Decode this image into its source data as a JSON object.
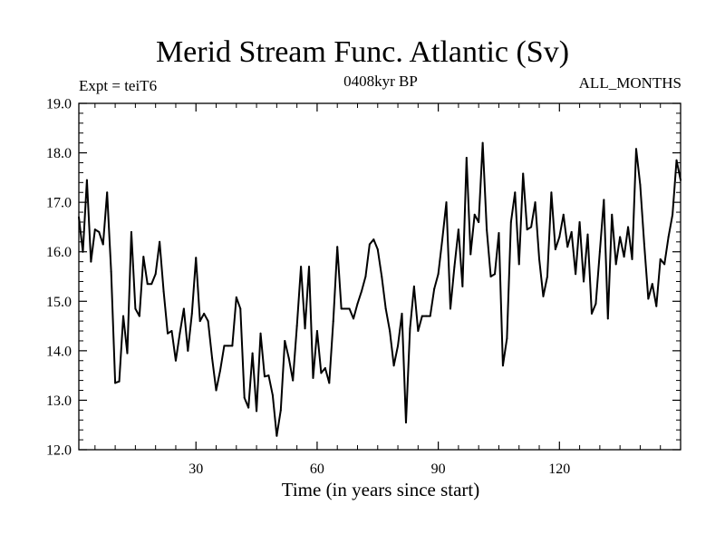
{
  "chart_data": {
    "type": "line",
    "title": "Merid Stream Func. Atlantic (Sv)",
    "subtitle": "0408kyr BP",
    "annotation_left": "Expt = teiT6",
    "annotation_right": "ALL_MONTHS",
    "xlabel": "Time (in years since start)",
    "ylabel": "",
    "xlim": [
      1,
      150
    ],
    "ylim": [
      12.0,
      19.0
    ],
    "xticks": [
      30,
      60,
      90,
      120
    ],
    "xtick_labels": [
      "30",
      "60",
      "90",
      "120"
    ],
    "yticks": [
      12,
      13,
      14,
      15,
      16,
      17,
      18,
      19
    ],
    "ytick_labels": [
      "12.0",
      "13.0",
      "14.0",
      "15.0",
      "16.0",
      "17.0",
      "18.0",
      "19.0"
    ],
    "series": [
      {
        "name": "Merid Stream Func. Atlantic",
        "color": "#000000",
        "x": [
          1,
          2,
          3,
          4,
          5,
          6,
          7,
          8,
          9,
          10,
          11,
          12,
          13,
          14,
          15,
          16,
          17,
          18,
          19,
          20,
          21,
          22,
          23,
          24,
          25,
          26,
          27,
          28,
          29,
          30,
          31,
          32,
          33,
          34,
          35,
          36,
          37,
          38,
          39,
          40,
          41,
          42,
          43,
          44,
          45,
          46,
          47,
          48,
          49,
          50,
          51,
          52,
          53,
          54,
          55,
          56,
          57,
          58,
          59,
          60,
          61,
          62,
          63,
          64,
          65,
          66,
          67,
          68,
          69,
          70,
          71,
          72,
          73,
          74,
          75,
          76,
          77,
          78,
          79,
          80,
          81,
          82,
          83,
          84,
          85,
          86,
          87,
          88,
          89,
          90,
          91,
          92,
          93,
          94,
          95,
          96,
          97,
          98,
          99,
          100,
          101,
          102,
          103,
          104,
          105,
          106,
          107,
          108,
          109,
          110,
          111,
          112,
          113,
          114,
          115,
          116,
          117,
          118,
          119,
          120,
          121,
          122,
          123,
          124,
          125,
          126,
          127,
          128,
          129,
          130,
          131,
          132,
          133,
          134,
          135,
          136,
          137,
          138,
          139,
          140,
          141,
          142,
          143,
          144,
          145,
          146,
          147,
          148,
          149,
          150
        ],
        "values": [
          16.7,
          16.0,
          17.45,
          15.8,
          16.45,
          16.4,
          16.15,
          17.2,
          15.6,
          13.35,
          13.38,
          14.7,
          13.95,
          16.4,
          14.85,
          14.7,
          15.9,
          15.35,
          15.35,
          15.55,
          16.2,
          15.2,
          14.35,
          14.4,
          13.8,
          14.35,
          14.85,
          14.0,
          14.75,
          15.88,
          14.6,
          14.75,
          14.6,
          13.85,
          13.2,
          13.6,
          14.1,
          14.1,
          14.1,
          15.08,
          14.85,
          13.05,
          12.85,
          13.95,
          12.78,
          14.35,
          13.48,
          13.5,
          13.1,
          12.28,
          12.8,
          14.2,
          13.85,
          13.4,
          14.5,
          15.7,
          14.45,
          15.7,
          13.45,
          14.4,
          13.55,
          13.65,
          13.35,
          14.6,
          16.1,
          14.85,
          14.85,
          14.85,
          14.65,
          14.95,
          15.2,
          15.5,
          16.15,
          16.25,
          16.05,
          15.5,
          14.85,
          14.4,
          13.7,
          14.1,
          14.75,
          12.55,
          14.45,
          15.3,
          14.4,
          14.7,
          14.7,
          14.7,
          15.25,
          15.55,
          16.25,
          17.0,
          14.85,
          15.7,
          16.45,
          15.3,
          17.9,
          15.95,
          16.75,
          16.6,
          18.2,
          16.45,
          15.5,
          15.55,
          16.38,
          13.7,
          14.25,
          16.6,
          17.2,
          15.75,
          17.58,
          16.45,
          16.5,
          17.0,
          15.85,
          15.1,
          15.5,
          17.2,
          16.05,
          16.3,
          16.75,
          16.1,
          16.4,
          15.55,
          16.6,
          15.4,
          16.35,
          14.75,
          14.95,
          16.0,
          17.05,
          14.65,
          16.75,
          15.75,
          16.3,
          15.9,
          16.5,
          15.85,
          18.08,
          17.35,
          16.15,
          15.05,
          15.35,
          14.9,
          15.85,
          15.75,
          16.3,
          16.75,
          17.85,
          17.45
        ]
      }
    ]
  }
}
